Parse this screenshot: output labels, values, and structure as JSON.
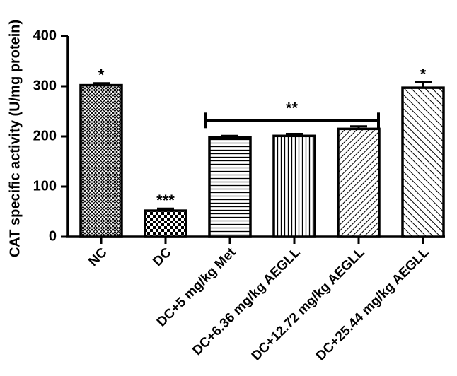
{
  "chart_data": {
    "type": "bar",
    "title": "",
    "xlabel": "",
    "ylabel": "CAT specific activity (U/mg protein)",
    "ylim": [
      0,
      400
    ],
    "yticks": [
      "0",
      "100",
      "200",
      "300",
      "400"
    ],
    "categories": [
      "NC",
      "DC",
      "DC+5 mg/kg Met",
      "DC+6.36 mg/kg AEGLL",
      "DC+12.72 mg/kg AEGLL",
      "DC+25.44 mg/kg AEGLL"
    ],
    "values": [
      302,
      52,
      198,
      201,
      215,
      297
    ],
    "errors": [
      4,
      4,
      3,
      4,
      5,
      11
    ],
    "bar_patterns": [
      "crosshatch-fine",
      "checker",
      "horizontal",
      "vertical",
      "diagonal-fine",
      "diagonal-wide"
    ],
    "significance": [
      "*",
      "***",
      "",
      "",
      "",
      "*"
    ],
    "bracket": {
      "label": "**",
      "from": 2,
      "to": 4,
      "y": 270
    },
    "grid": false,
    "legend": "none"
  }
}
